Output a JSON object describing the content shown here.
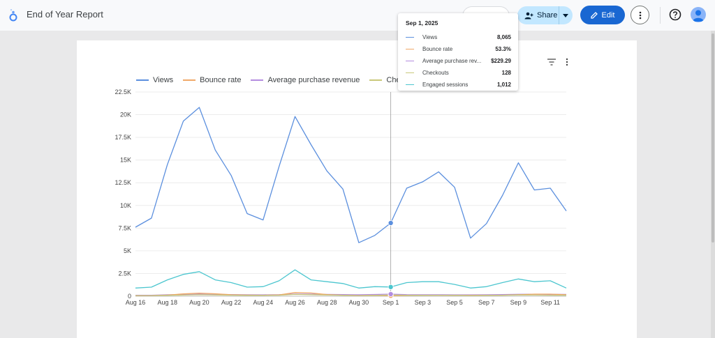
{
  "app": {
    "title": "End of Year Report"
  },
  "toolbar": {
    "share_label": "Share",
    "edit_label": "Edit"
  },
  "colors": {
    "Views": "#5b8fde",
    "Bounce rate": "#f0a868",
    "Average purchase revenue": "#b48ce0",
    "Checkouts": "#c9c87a",
    "Engaged sessions": "#4cc6cf"
  },
  "legend": [
    "Views",
    "Bounce rate",
    "Average purchase revenue",
    "Checkouts"
  ],
  "tooltip": {
    "date": "Sep 1, 2025",
    "rows": [
      {
        "label": "Views",
        "value": "8,065"
      },
      {
        "label": "Bounce rate",
        "value": "53.3%"
      },
      {
        "label": "Average purchase rev...",
        "value": "$229.29"
      },
      {
        "label": "Checkouts",
        "value": "128"
      },
      {
        "label": "Engaged sessions",
        "value": "1,012"
      }
    ]
  },
  "chart_data": {
    "type": "line",
    "ylim": [
      0,
      22500
    ],
    "y_ticks": [
      {
        "value": 0,
        "label": "0"
      },
      {
        "value": 2500,
        "label": "2.5K"
      },
      {
        "value": 5000,
        "label": "5K"
      },
      {
        "value": 7500,
        "label": "7.5K"
      },
      {
        "value": 10000,
        "label": "10K"
      },
      {
        "value": 12500,
        "label": "12.5K"
      },
      {
        "value": 15000,
        "label": "15K"
      },
      {
        "value": 17500,
        "label": "17.5K"
      },
      {
        "value": 20000,
        "label": "20K"
      },
      {
        "value": 22500,
        "label": "22.5K"
      }
    ],
    "x": [
      "Aug 16",
      "Aug 17",
      "Aug 18",
      "Aug 19",
      "Aug 20",
      "Aug 21",
      "Aug 22",
      "Aug 23",
      "Aug 24",
      "Aug 25",
      "Aug 26",
      "Aug 27",
      "Aug 28",
      "Aug 29",
      "Aug 30",
      "Aug 31",
      "Sep 1",
      "Sep 2",
      "Sep 3",
      "Sep 4",
      "Sep 5",
      "Sep 6",
      "Sep 7",
      "Sep 8",
      "Sep 9",
      "Sep 10",
      "Sep 11",
      "Sep 12"
    ],
    "x_tick_labels": [
      "Aug 16",
      "Aug 18",
      "Aug 20",
      "Aug 22",
      "Aug 24",
      "Aug 26",
      "Aug 28",
      "Aug 30",
      "Sep 1",
      "Sep 3",
      "Sep 5",
      "Sep 7",
      "Sep 9",
      "Sep 11"
    ],
    "highlight": "Sep 1",
    "series": [
      {
        "name": "Views",
        "values": [
          7600,
          8600,
          14500,
          19300,
          20800,
          16100,
          13300,
          9100,
          8400,
          14300,
          19800,
          16700,
          13800,
          11800,
          5900,
          6700,
          8065,
          11900,
          12600,
          13700,
          12000,
          6400,
          8000,
          11100,
          14700,
          11700,
          11900,
          9400
        ]
      },
      {
        "name": "Bounce rate",
        "values": [
          50,
          60,
          120,
          250,
          330,
          270,
          160,
          120,
          110,
          140,
          400,
          350,
          180,
          110,
          60,
          90,
          53,
          80,
          110,
          110,
          90,
          90,
          100,
          110,
          160,
          230,
          230,
          160
        ]
      },
      {
        "name": "Average purchase revenue",
        "values": [
          100,
          110,
          160,
          190,
          220,
          200,
          180,
          160,
          150,
          170,
          240,
          230,
          200,
          180,
          160,
          190,
          229,
          170,
          160,
          160,
          150,
          150,
          160,
          180,
          210,
          220,
          210,
          200
        ]
      },
      {
        "name": "Checkouts",
        "values": [
          70,
          70,
          90,
          120,
          160,
          140,
          110,
          90,
          90,
          110,
          200,
          170,
          120,
          100,
          70,
          90,
          128,
          100,
          100,
          110,
          100,
          70,
          90,
          110,
          130,
          120,
          110,
          100
        ]
      },
      {
        "name": "Engaged sessions",
        "values": [
          900,
          1000,
          1800,
          2400,
          2700,
          1800,
          1500,
          1000,
          1050,
          1700,
          2900,
          1800,
          1600,
          1400,
          900,
          1050,
          1012,
          1500,
          1600,
          1600,
          1300,
          900,
          1050,
          1500,
          1900,
          1600,
          1700,
          900
        ]
      }
    ]
  }
}
